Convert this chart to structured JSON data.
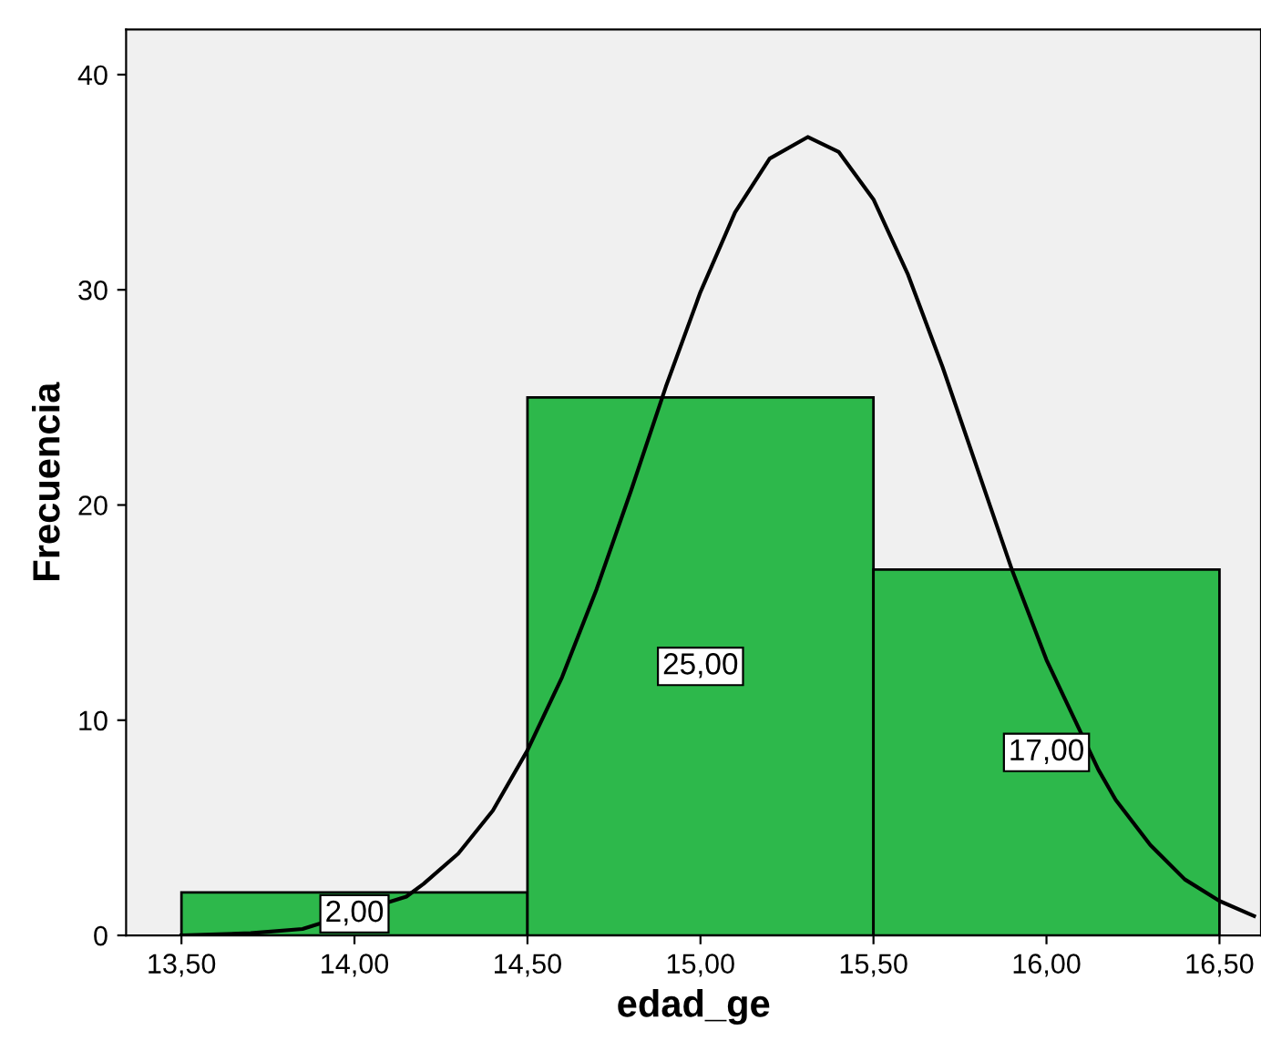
{
  "chart_data": {
    "type": "histogram",
    "xlabel": "edad_ge",
    "ylabel": "Frecuencia",
    "bins": [
      13.5,
      14.5,
      15.5,
      16.5
    ],
    "values": [
      2,
      25,
      17
    ],
    "color": "#2db84b",
    "value_labels": [
      "2,00",
      "25,00",
      "17,00"
    ],
    "series": [
      {
        "type": "line",
        "color": "#000000",
        "x": [
          13.5,
          13.7,
          13.85,
          14.15,
          14.2,
          14.3,
          14.4,
          14.5,
          14.6,
          14.7,
          14.8,
          14.9,
          15.0,
          15.1,
          15.2,
          15.31,
          15.4,
          15.5,
          15.6,
          15.7,
          15.8,
          15.9,
          16.0,
          16.15,
          16.2,
          16.3,
          16.4,
          16.5,
          16.6
        ],
        "values": [
          0.0,
          0.1,
          0.3,
          1.8,
          2.4,
          3.8,
          5.8,
          8.6,
          12.0,
          16.1,
          20.7,
          25.5,
          29.9,
          33.6,
          36.1,
          37.1,
          36.4,
          34.2,
          30.7,
          26.4,
          21.7,
          17.0,
          12.8,
          7.7,
          6.3,
          4.2,
          2.6,
          1.6,
          0.9
        ]
      }
    ],
    "xlim": [
      13.34,
      16.62
    ],
    "ylim": [
      0,
      42.1
    ],
    "xticks": [
      {
        "value": 13.5,
        "label": "13,50"
      },
      {
        "value": 14.0,
        "label": "14,00"
      },
      {
        "value": 14.5,
        "label": "14,50"
      },
      {
        "value": 15.0,
        "label": "15,00"
      },
      {
        "value": 15.5,
        "label": "15,50"
      },
      {
        "value": 16.0,
        "label": "16,00"
      },
      {
        "value": 16.5,
        "label": "16,50"
      }
    ],
    "yticks": [
      0,
      10,
      20,
      30,
      40
    ],
    "grid": false,
    "legend": false
  }
}
